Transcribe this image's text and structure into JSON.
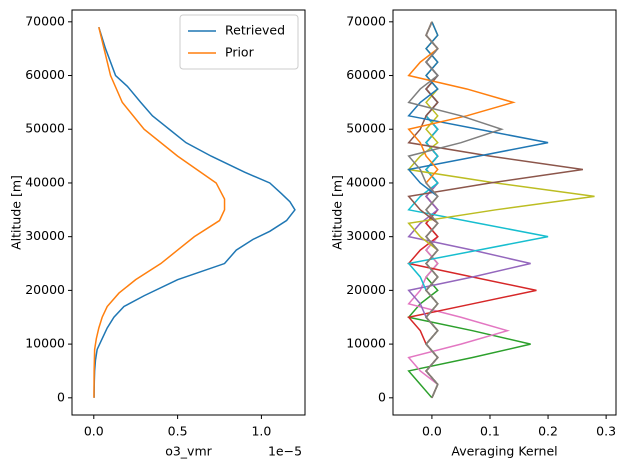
{
  "chart_data": [
    {
      "type": "line",
      "xlabel": "o3_vmr",
      "x_offset_label": "1e−5",
      "ylabel": "Altitude [m]",
      "xlim": [
        -0.13,
        1.26
      ],
      "ylim": [
        -3200,
        72200
      ],
      "xticks": [
        {
          "value": 0,
          "label": "0.0"
        },
        {
          "value": 0.5,
          "label": "0.5"
        },
        {
          "value": 1,
          "label": "1.0"
        }
      ],
      "yticks": [
        0,
        10000,
        20000,
        30000,
        40000,
        50000,
        60000,
        70000
      ],
      "legend": "upper right",
      "series": [
        {
          "name": "Retrieved",
          "color": "#1f77b4",
          "x": [
            0.03,
            0.07,
            0.13,
            0.2,
            0.28,
            0.35,
            0.45,
            0.55,
            0.7,
            0.9,
            1.05,
            1.12,
            1.17,
            1.2,
            1.15,
            1.05,
            0.95,
            0.85,
            0.78,
            0.5,
            0.3,
            0.18,
            0.12,
            0.08,
            0.05,
            0.02,
            0.01,
            0.005,
            0.003,
            0.002,
            0.002
          ],
          "values": [
            69000,
            65000,
            60000,
            58000,
            55000,
            52500,
            50000,
            47500,
            45000,
            42000,
            40000,
            38000,
            36500,
            35000,
            33000,
            31000,
            29500,
            27500,
            25000,
            22000,
            19000,
            17000,
            15000,
            13000,
            11000,
            9000,
            7000,
            5000,
            3000,
            1000,
            0
          ]
        },
        {
          "name": "Prior",
          "color": "#ff7f0e",
          "x": [
            0.03,
            0.1,
            0.17,
            0.3,
            0.5,
            0.73,
            0.78,
            0.78,
            0.75,
            0.6,
            0.5,
            0.4,
            0.25,
            0.15,
            0.08,
            0.05,
            0.03,
            0.015,
            0.005,
            0.002,
            0.001
          ],
          "values": [
            69000,
            60000,
            55000,
            50000,
            45000,
            40000,
            37000,
            35000,
            33000,
            30000,
            27500,
            25000,
            22000,
            19500,
            17000,
            15000,
            13000,
            11000,
            9000,
            5000,
            0
          ]
        }
      ]
    },
    {
      "type": "line",
      "xlabel": "Averaging Kernel",
      "ylabel": "Altitude [m]",
      "xlim": [
        -0.067,
        0.317
      ],
      "ylim": [
        -3200,
        72200
      ],
      "xticks": [
        {
          "value": 0,
          "label": "0.0"
        },
        {
          "value": 0.1,
          "label": "0.1"
        },
        {
          "value": 0.2,
          "label": "0.2"
        },
        {
          "value": 0.3,
          "label": "0.3"
        }
      ],
      "yticks": [
        0,
        10000,
        20000,
        30000,
        40000,
        50000,
        60000,
        70000
      ],
      "y": [
        0,
        2500,
        5000,
        7500,
        10000,
        12500,
        15000,
        17500,
        20000,
        22500,
        25000,
        27500,
        30000,
        32500,
        35000,
        37500,
        40000,
        42500,
        45000,
        47500,
        50000,
        52500,
        55000,
        57500,
        60000,
        62500,
        65000,
        67500,
        70000
      ],
      "series": [
        {
          "color": "#2ca02c",
          "x": [
            0,
            -0.02,
            -0.04,
            0.07,
            0.17,
            0.07,
            -0.04,
            -0.02,
            0.01,
            -0.01,
            0.01,
            -0.01,
            0.01,
            -0.01,
            0.01,
            -0.01,
            0.01,
            -0.01,
            0.01,
            -0.01,
            0.01,
            -0.01,
            0.01,
            -0.01,
            0.01,
            -0.01,
            0.01,
            -0.01,
            0
          ]
        },
        {
          "color": "#e377c2",
          "x": [
            0,
            0.01,
            -0.02,
            -0.04,
            0.05,
            0.13,
            0.05,
            -0.04,
            -0.02,
            -0.01,
            0.01,
            -0.01,
            0.01,
            -0.01,
            0.01,
            -0.01,
            0.01,
            -0.01,
            0.01,
            -0.01,
            0.01,
            -0.01,
            0.01,
            -0.01,
            0.01,
            -0.01,
            0.01,
            -0.01,
            0
          ]
        },
        {
          "color": "#d62728",
          "x": [
            0,
            0.01,
            -0.01,
            0.01,
            -0.01,
            -0.02,
            -0.04,
            0.07,
            0.18,
            0.07,
            -0.04,
            -0.02,
            0.01,
            -0.01,
            0.01,
            -0.01,
            0.01,
            -0.01,
            0.01,
            -0.01,
            0.01,
            -0.01,
            0.01,
            -0.01,
            0.01,
            -0.01,
            0.01,
            -0.01,
            0
          ]
        },
        {
          "color": "#9467bd",
          "x": [
            0,
            0.01,
            -0.01,
            0.01,
            -0.01,
            0.01,
            -0.01,
            -0.02,
            -0.04,
            0.07,
            0.17,
            0.07,
            -0.04,
            -0.02,
            0.01,
            -0.01,
            0.01,
            -0.01,
            0.01,
            -0.01,
            0.01,
            -0.01,
            0.01,
            -0.01,
            0.01,
            -0.01,
            0.01,
            -0.01,
            0
          ]
        },
        {
          "color": "#17becf",
          "x": [
            0,
            0.01,
            -0.01,
            0.01,
            -0.01,
            0.01,
            -0.01,
            0.01,
            -0.01,
            -0.02,
            -0.04,
            0.08,
            0.2,
            0.08,
            -0.04,
            -0.02,
            0.01,
            -0.01,
            0.01,
            -0.01,
            0.01,
            -0.01,
            0.01,
            -0.01,
            0.01,
            -0.01,
            0.01,
            -0.01,
            0
          ]
        },
        {
          "color": "#bcbd22",
          "x": [
            0,
            0.01,
            -0.01,
            0.01,
            -0.01,
            0.01,
            -0.01,
            0.01,
            -0.01,
            0.01,
            -0.01,
            0.01,
            -0.02,
            -0.04,
            0.11,
            0.28,
            0.11,
            -0.04,
            -0.02,
            0.01,
            -0.01,
            0.01,
            -0.01,
            0.01,
            -0.01,
            0.01,
            -0.01,
            0.01,
            0
          ]
        },
        {
          "color": "#8c564b",
          "x": [
            0,
            0.01,
            -0.01,
            0.01,
            -0.01,
            0.01,
            -0.01,
            0.01,
            -0.01,
            0.01,
            -0.01,
            0.01,
            -0.01,
            0.01,
            -0.02,
            -0.04,
            0.1,
            0.26,
            0.1,
            -0.04,
            -0.02,
            -0.01,
            0.01,
            -0.01,
            0.01,
            -0.01,
            0.01,
            -0.01,
            0
          ]
        },
        {
          "color": "#1f77b4",
          "x": [
            0,
            0.01,
            -0.01,
            0.01,
            -0.01,
            0.01,
            -0.01,
            0.01,
            -0.01,
            0.01,
            -0.01,
            0.01,
            -0.01,
            0.01,
            -0.01,
            0.01,
            -0.02,
            -0.04,
            0.08,
            0.2,
            0.08,
            -0.04,
            -0.02,
            0.01,
            -0.01,
            0.01,
            -0.01,
            0.01,
            0
          ]
        },
        {
          "color": "#ff7f0e",
          "x": [
            0,
            0.01,
            -0.01,
            0.01,
            -0.01,
            0.01,
            -0.01,
            0.01,
            -0.01,
            0.01,
            -0.01,
            0.01,
            -0.01,
            0.01,
            -0.01,
            0.01,
            -0.01,
            0.01,
            -0.01,
            -0.02,
            -0.04,
            0.06,
            0.14,
            0.06,
            -0.04,
            -0.02,
            0.01,
            -0.01,
            0
          ]
        },
        {
          "color": "#7f7f7f",
          "x": [
            0,
            0.01,
            -0.01,
            0.01,
            -0.01,
            0.01,
            -0.01,
            0.01,
            -0.01,
            0.01,
            -0.01,
            0.01,
            -0.01,
            0.01,
            -0.01,
            0.01,
            -0.01,
            -0.02,
            -0.04,
            0.05,
            0.12,
            0.05,
            -0.04,
            -0.02,
            0.01,
            -0.01,
            0.01,
            -0.01,
            0
          ]
        }
      ]
    }
  ]
}
